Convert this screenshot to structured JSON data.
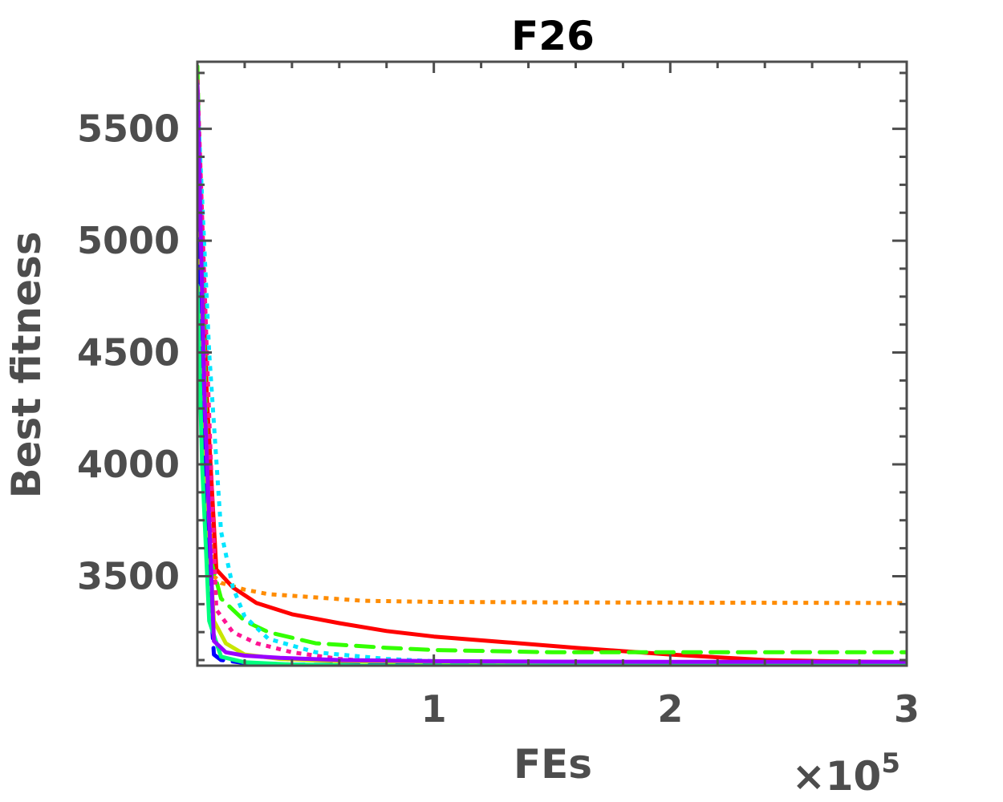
{
  "chart_data": {
    "type": "line",
    "title": "F26",
    "xlabel": "FEs",
    "ylabel": "Best fitness",
    "x_multiplier": "×10",
    "x_multiplier_exp": "5",
    "xlim": [
      0,
      3
    ],
    "ylim": [
      3100,
      5800
    ],
    "xticks": [
      1,
      2,
      3
    ],
    "xtick_labels": [
      "1",
      "2",
      "3"
    ],
    "yticks": [
      3500,
      4000,
      4500,
      5000,
      5500
    ],
    "ytick_labels": [
      "3500",
      "4000",
      "4500",
      "5000",
      "5500"
    ],
    "grid": false,
    "legend": "none",
    "colors": {
      "axis": "#4d4d4d",
      "title": "#000000"
    },
    "series": [
      {
        "color": "#ff8c00",
        "dash": "dotted",
        "x": [
          0,
          0.04,
          0.07,
          0.1,
          0.2,
          0.3,
          0.5,
          0.7,
          1.0,
          1.5,
          2.0,
          2.5,
          3.0
        ],
        "y": [
          5600,
          4200,
          3500,
          3470,
          3440,
          3420,
          3405,
          3390,
          3385,
          3383,
          3382,
          3381,
          3380
        ]
      },
      {
        "color": "#ff0000",
        "dash": "solid",
        "x": [
          0,
          0.04,
          0.08,
          0.15,
          0.25,
          0.4,
          0.6,
          0.8,
          1.0,
          1.3,
          1.6,
          2.0,
          2.4,
          2.8,
          3.0
        ],
        "y": [
          5700,
          4300,
          3530,
          3450,
          3380,
          3330,
          3290,
          3255,
          3230,
          3205,
          3180,
          3150,
          3125,
          3118,
          3115
        ]
      },
      {
        "color": "#33ff00",
        "dash": "dashed",
        "x": [
          0,
          0.05,
          0.1,
          0.2,
          0.3,
          0.5,
          0.8,
          1.0,
          1.5,
          2.0,
          2.5,
          3.0
        ],
        "y": [
          5780,
          3600,
          3400,
          3300,
          3250,
          3200,
          3180,
          3170,
          3160,
          3160,
          3160,
          3160
        ]
      },
      {
        "color": "#00e5ff",
        "dash": "dotted",
        "x": [
          0,
          0.05,
          0.1,
          0.15,
          0.2,
          0.3,
          0.5,
          0.8,
          1.0,
          1.5,
          2.0,
          3.0
        ],
        "y": [
          5650,
          4500,
          3700,
          3450,
          3320,
          3220,
          3160,
          3130,
          3120,
          3115,
          3112,
          3110
        ]
      },
      {
        "color": "#ff1493",
        "dash": "dotted",
        "x": [
          0,
          0.04,
          0.08,
          0.15,
          0.25,
          0.4,
          0.6,
          0.8,
          1.0,
          1.5,
          2.0,
          2.5,
          3.0
        ],
        "y": [
          5720,
          4500,
          3350,
          3250,
          3200,
          3160,
          3130,
          3115,
          3110,
          3105,
          3100,
          3100,
          3100
        ]
      },
      {
        "color": "#c8e600",
        "dash": "solid",
        "x": [
          0,
          0.03,
          0.07,
          0.12,
          0.2,
          0.35,
          0.6,
          1.0,
          1.5,
          2.0,
          3.0
        ],
        "y": [
          5500,
          4000,
          3300,
          3200,
          3150,
          3130,
          3120,
          3115,
          3110,
          3110,
          3110
        ]
      },
      {
        "color": "#0000ff",
        "dash": "dashed",
        "x": [
          0,
          0.03,
          0.07,
          0.1,
          0.2,
          0.4,
          0.7,
          1.0,
          1.5,
          2.0,
          3.0
        ],
        "y": [
          5250,
          3800,
          3150,
          3125,
          3112,
          3105,
          3102,
          3101,
          3100,
          3100,
          3100
        ]
      },
      {
        "color": "#00ff7f",
        "dash": "solid",
        "x": [
          0,
          0.02,
          0.05,
          0.1,
          0.2,
          0.4,
          0.7,
          1.0,
          2.0,
          3.0
        ],
        "y": [
          4800,
          4000,
          3300,
          3140,
          3115,
          3105,
          3100,
          3100,
          3100,
          3100
        ]
      },
      {
        "color": "#9900ff",
        "dash": "solid",
        "x": [
          0,
          0.03,
          0.07,
          0.12,
          0.2,
          0.35,
          0.6,
          1.0,
          1.5,
          2.0,
          2.5,
          3.0
        ],
        "y": [
          5700,
          4300,
          3210,
          3160,
          3145,
          3135,
          3125,
          3120,
          3118,
          3117,
          3117,
          3117
        ]
      }
    ]
  }
}
